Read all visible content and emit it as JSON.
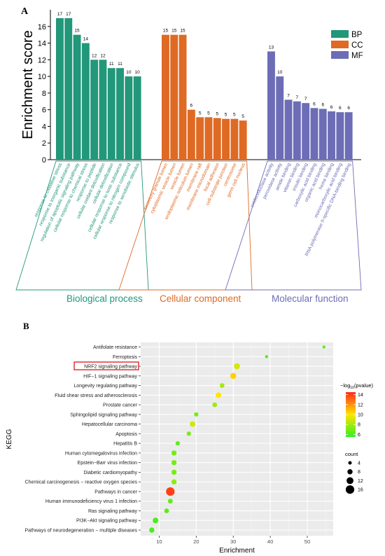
{
  "chart_data": [
    {
      "type": "bar",
      "panel_label": "A",
      "ylabel": "Enrichment score",
      "ylim": [
        0,
        18
      ],
      "yticks": [
        0,
        2,
        4,
        6,
        8,
        10,
        12,
        14,
        16
      ],
      "legend": {
        "position": "top-right",
        "entries": [
          "BP",
          "CC",
          "MF"
        ]
      },
      "colors": {
        "BP": "#22977a",
        "CC": "#df6a24",
        "MF": "#6c6db6"
      },
      "groups": [
        {
          "key": "BP",
          "name": "Biological process",
          "categories": [
            "response to oxidative stress",
            "response to inorganic substance",
            "regulation of apoptotic signaling pathway",
            "cellular response to chemical stress",
            "response to peptide",
            "cellular oxidant detoxification",
            "cellular detoxification",
            "cellular response to toxic substance",
            "cellular response to nitrogen compound",
            "response to xenobiotic stimulus"
          ],
          "values": [
            17,
            17,
            15,
            14,
            12,
            12,
            11,
            11,
            10,
            10
          ]
        },
        {
          "key": "CC",
          "name": "Cellular component",
          "categories": [
            "secretory granule lumen",
            "cytoplasmic vesicle lumen",
            "vesicle lumen",
            "endoplasmic reticulum lumen",
            "membrane raft",
            "membrane microdomain",
            "focal adhesion",
            "cell-substrate junction",
            "centrosome",
            "germ cell nucleus"
          ],
          "values": [
            15,
            15,
            15,
            6,
            5,
            5,
            5,
            5,
            5,
            5
          ],
          "bar_values": [
            15,
            15,
            15,
            6,
            5.1,
            5.1,
            5,
            4.9,
            4.9,
            4.7
          ]
        },
        {
          "key": "MF",
          "name": "Molecular function",
          "categories": [
            "oxidoreductase activity",
            "peroxidase activity",
            "amide binding",
            "vitamin binding",
            "insulin binding",
            "carboxylic acid binding",
            "organic acid binding",
            "heme binding",
            "monocarboxylic acid binding",
            "RNA polymerase II-specific DNA-binding binding"
          ],
          "values": [
            13,
            10,
            7,
            7,
            7,
            6,
            6,
            6,
            6,
            6
          ],
          "bar_values": [
            13,
            10,
            7.2,
            7,
            6.8,
            6.2,
            6.1,
            5.8,
            5.7,
            5.7
          ]
        }
      ]
    },
    {
      "type": "scatter",
      "panel_label": "B",
      "xlabel": "Enrichment",
      "ylabel": "KEGG",
      "xlim": [
        5,
        57
      ],
      "xticks": [
        10,
        20,
        30,
        40,
        50
      ],
      "highlighted": "NRF2 signaling pathway",
      "color_legend": {
        "title_main": "−log",
        "title_sub": "10",
        "title_tail": "(pvalue)",
        "ticks": [
          6,
          8,
          10,
          12,
          14
        ],
        "min": 5.5,
        "max": 14.5,
        "colors": [
          "#33ee22",
          "#ffe600",
          "#ff2a1a"
        ]
      },
      "size_legend": {
        "title": "count",
        "values": [
          4,
          8,
          12,
          16
        ]
      },
      "points": [
        {
          "pathway": "Antifolate resistance",
          "enrichment": 54.5,
          "neglog10p": 6.5,
          "count": 3
        },
        {
          "pathway": "Ferroptosis",
          "enrichment": 39,
          "neglog10p": 6.2,
          "count": 3
        },
        {
          "pathway": "NRF2 signaling pathway",
          "enrichment": 31,
          "neglog10p": 9.0,
          "count": 10
        },
        {
          "pathway": "HIF−1 signaling pathway",
          "enrichment": 30,
          "neglog10p": 10.5,
          "count": 10
        },
        {
          "pathway": "Longevity regulating pathway",
          "enrichment": 27,
          "neglog10p": 8.0,
          "count": 7
        },
        {
          "pathway": "Fluid shear stress and atherosclerosis",
          "enrichment": 26,
          "neglog10p": 10.0,
          "count": 9
        },
        {
          "pathway": "Prostate cancer",
          "enrichment": 25,
          "neglog10p": 8.0,
          "count": 7
        },
        {
          "pathway": "Sphingolipid signaling pathway",
          "enrichment": 20,
          "neglog10p": 7.0,
          "count": 6
        },
        {
          "pathway": "Hepatocellular carcinoma",
          "enrichment": 19,
          "neglog10p": 9.0,
          "count": 9
        },
        {
          "pathway": "Apoptosis",
          "enrichment": 18,
          "neglog10p": 7.0,
          "count": 6
        },
        {
          "pathway": "Hepatitis B",
          "enrichment": 15,
          "neglog10p": 6.5,
          "count": 6
        },
        {
          "pathway": "Human cytomegalovirus infection",
          "enrichment": 14,
          "neglog10p": 7.0,
          "count": 8
        },
        {
          "pathway": "Epstein−Barr virus infection",
          "enrichment": 14,
          "neglog10p": 7.0,
          "count": 8
        },
        {
          "pathway": "Diabetic cardiomyopathy",
          "enrichment": 14,
          "neglog10p": 7.0,
          "count": 8
        },
        {
          "pathway": "Chemical carcinogenesis − reactive oxygen species",
          "enrichment": 14,
          "neglog10p": 7.5,
          "count": 8
        },
        {
          "pathway": "Pathways in cancer",
          "enrichment": 13,
          "neglog10p": 14.0,
          "count": 16
        },
        {
          "pathway": "Human immunodeficiency virus 1 infection",
          "enrichment": 13,
          "neglog10p": 6.5,
          "count": 7
        },
        {
          "pathway": "Ras signaling pathway",
          "enrichment": 12,
          "neglog10p": 6.5,
          "count": 7
        },
        {
          "pathway": "PI3K−Akt signaling pathway",
          "enrichment": 9,
          "neglog10p": 6.0,
          "count": 9
        },
        {
          "pathway": "Pathways of neurodegeneration − multiple diseases",
          "enrichment": 8,
          "neglog10p": 6.0,
          "count": 8
        }
      ]
    }
  ]
}
